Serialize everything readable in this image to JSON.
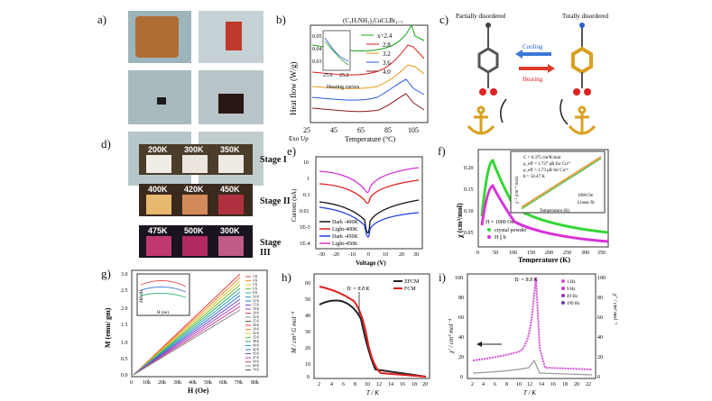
{
  "labels": {
    "a": "a)",
    "b": "b)",
    "c": "c)",
    "d": "d)",
    "e": "e)",
    "f": "f)",
    "g": "g)",
    "h": "h)",
    "i": "i)"
  },
  "panel_b": {
    "formula": "(C₃H₇NH₃)₂CuClₓBr₄₋ₓ",
    "ylabel": "Heat flow (W/g)",
    "xlabel": "Temperature (°C)",
    "exo": "Exo Up",
    "heating": "Heating curves",
    "inset_y": [
      "0.05",
      "0.04",
      "0.03"
    ],
    "inset_x": [
      "25.0",
      "25.2"
    ],
    "xticks": [
      "25",
      "45",
      "65",
      "85",
      "105"
    ],
    "legend": [
      "x=2.4",
      "2.8",
      "3.2",
      "3.6",
      "4.0"
    ],
    "colors": [
      "#1aa81a",
      "#d81b1b",
      "#e39b18",
      "#2b58d8",
      "#8f1b1b"
    ]
  },
  "panel_c": {
    "left": "Partially disordered",
    "right": "Totally disordered",
    "cooling": "Cooling",
    "heating": "Heating"
  },
  "panel_d": {
    "row1": [
      "200K",
      "300K",
      "350K"
    ],
    "row2": [
      "400K",
      "420K",
      "450K"
    ],
    "row3": [
      "475K",
      "500K",
      "300K"
    ],
    "stages": [
      "Stage I",
      "Stage II",
      "Stage III"
    ]
  },
  "panel_e": {
    "ylabel": "Current (nA)",
    "xlabel": "Voltage (V)",
    "yticks": [
      "10",
      "1",
      "0.1",
      "0.01",
      "1E-3",
      "1E-4"
    ],
    "xticks": [
      "-30",
      "-20",
      "-10",
      "0",
      "10",
      "20",
      "30"
    ],
    "legend": [
      "Dark -400K",
      "Light-400K",
      "Dark -450K",
      "Light-450K"
    ],
    "colors": [
      "#111111",
      "#e02020",
      "#2440e0",
      "#d733d7"
    ]
  },
  "panel_f": {
    "ylabel": "χ (cm³/mol)",
    "xlabel": "Temperature (K)",
    "yticks": [
      "0.20",
      "0.15",
      "0.10",
      "0.05"
    ],
    "xticks": [
      "0",
      "50",
      "100",
      "150",
      "200",
      "250",
      "300",
      "350"
    ],
    "inset_lines": [
      "C = 0.375 cm³K/mol",
      "μ_eff = 1.727 μB for Cu²⁺",
      "μ_eff = 1.73 μB for Cu²⁺",
      "θ = 34.47 K"
    ],
    "inset_field": "1000 Oe",
    "inset_fit": "Linear fit",
    "inset_ylabel": "χ⁻¹ (cm⁻³ mol)",
    "inset_xlabel": "Temperature (K)",
    "field": "H = 1000 Oe",
    "legend": [
      "crystal powder",
      "H || b"
    ],
    "colors": [
      "#35d635",
      "#d733d7",
      "#e3a04a"
    ]
  },
  "panel_g": {
    "ylabel": "M (emu/ gm)",
    "xlabel": "H (Oe)",
    "yticks": [
      "3.0",
      "2.5",
      "2.0",
      "1.5",
      "1.0",
      "0.5",
      "0.0"
    ],
    "xticks": [
      "0",
      "10k",
      "20k",
      "30k",
      "40k",
      "50k",
      "60k",
      "70k",
      "80k"
    ],
    "inset_ylabel": "dM/dH",
    "inset_xlabel": "H (oe)",
    "legend": [
      "3 K",
      "4 K",
      "5 K",
      "6 K",
      "8 K",
      "10 K",
      "12 K",
      "15 K",
      "18 K",
      "20 K",
      "22 K",
      "25 K",
      "28 K",
      "30 K",
      "32 K",
      "35 K",
      "38 K",
      "40 K",
      "42 K",
      "45 K",
      "47 K",
      "50 K",
      "60 K",
      "70 K"
    ]
  },
  "panel_h": {
    "ylabel": "M / cm³ G mol⁻¹",
    "xlabel": "T / K",
    "tc": "Tc = 8.8 K",
    "yticks": [
      "60",
      "50",
      "40",
      "30",
      "20",
      "10",
      "0"
    ],
    "xticks": [
      "2",
      "4",
      "6",
      "8",
      "10",
      "12",
      "14",
      "16",
      "18",
      "20"
    ],
    "legend": [
      "ZFCM",
      "FCM"
    ],
    "colors": [
      "#222222",
      "#e02020"
    ]
  },
  "panel_i": {
    "ylabel": "χ′ / cm³ mol⁻¹",
    "ylabel2": "χ″ / cm³ mol⁻¹",
    "xlabel": "T / K",
    "tc": "Tc = 8.8 K",
    "yticks": [
      "100",
      "80",
      "60",
      "40",
      "20",
      "0"
    ],
    "y2ticks": [
      "100",
      "80",
      "60",
      "40",
      "20",
      "0"
    ],
    "xticks": [
      "2",
      "4",
      "6",
      "8",
      "10",
      "12",
      "14",
      "16",
      "18",
      "20",
      "22"
    ],
    "legend": [
      "1 Hz",
      "9 Hz",
      "49 Hz",
      "199 Hz"
    ],
    "colors": [
      "#d24fd2",
      "#c53ac5",
      "#9b2fb0",
      "#6d3fa0"
    ]
  }
}
